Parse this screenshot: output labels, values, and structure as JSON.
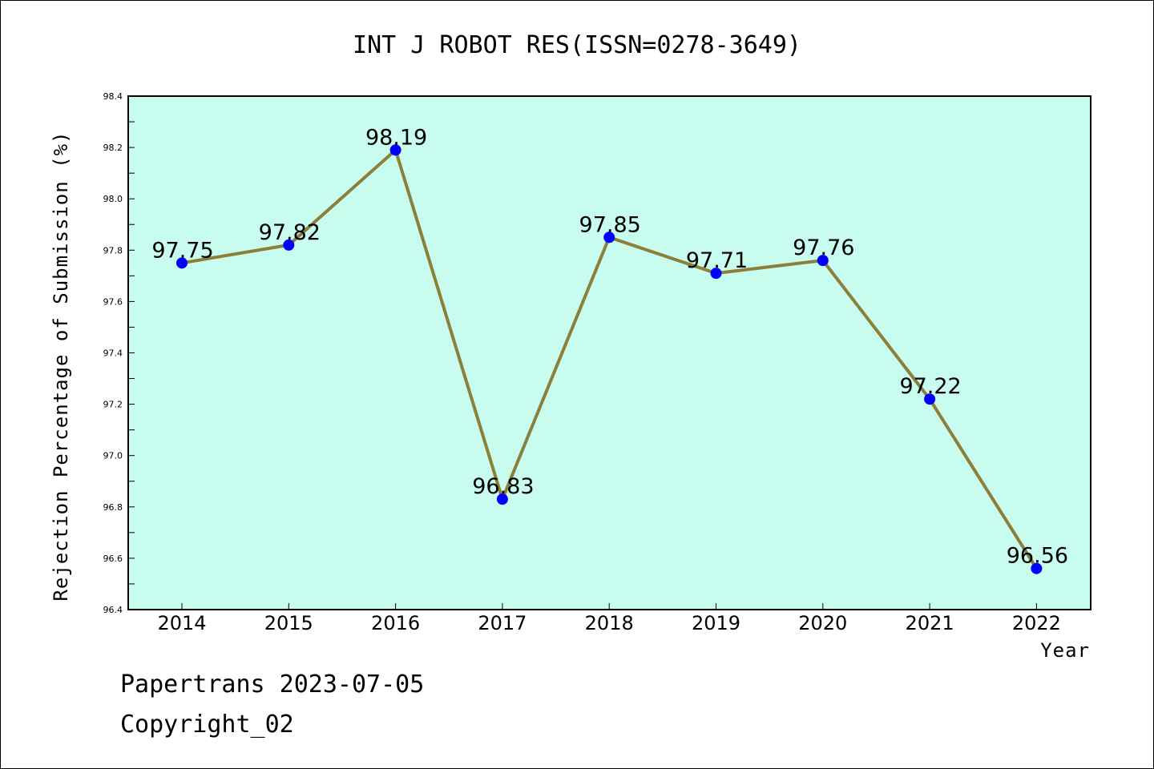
{
  "chart_data": {
    "type": "line",
    "title": "INT J ROBOT RES(ISSN=0278-3649)",
    "xlabel": "Year",
    "ylabel": "Rejection Percentage of Submission (%)",
    "categories": [
      "2014",
      "2015",
      "2016",
      "2017",
      "2018",
      "2019",
      "2020",
      "2021",
      "2022"
    ],
    "series": [
      {
        "values": [
          97.75,
          97.82,
          98.19,
          96.83,
          97.85,
          97.71,
          97.76,
          97.22,
          96.56
        ]
      }
    ],
    "ylim": [
      96.4,
      98.4
    ],
    "yticks": [
      "96.4",
      "96.6",
      "96.8",
      "97.0",
      "97.2",
      "97.4",
      "97.6",
      "97.8",
      "98.0",
      "98.2",
      "98.4"
    ],
    "data_labels": [
      "97.75",
      "97.82",
      "98.19",
      "96.83",
      "97.85",
      "97.71",
      "97.76",
      "97.22",
      "96.56"
    ],
    "grid": false,
    "legend": "none"
  },
  "footer": {
    "line1": "Papertrans 2023-07-05",
    "line2": "Copyright_02"
  },
  "colors": {
    "plot_background": "#c8fcee",
    "line": "#8b7f3a",
    "marker": "#0000ff"
  }
}
